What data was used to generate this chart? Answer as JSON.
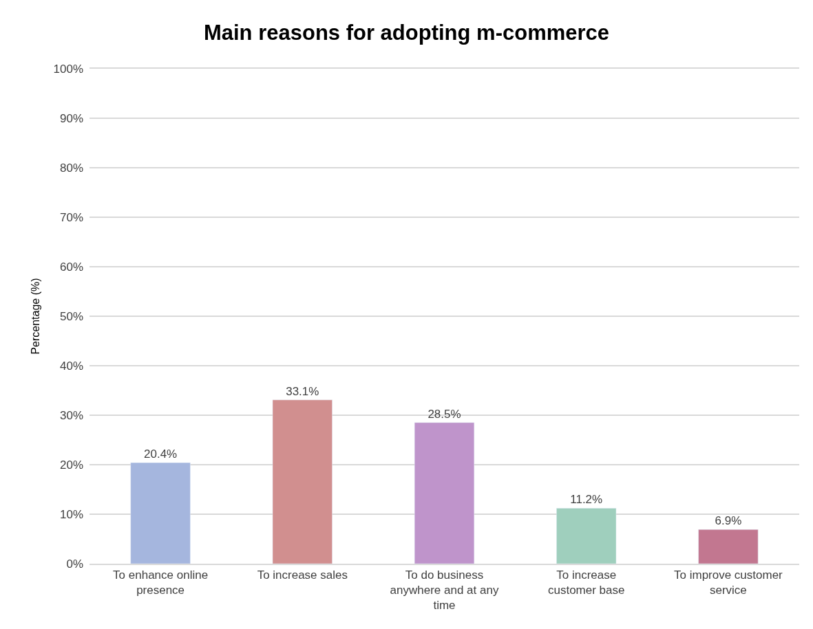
{
  "chart_data": {
    "type": "bar",
    "title": "Main reasons for adopting m-commerce",
    "ylabel": "Percentage (%)",
    "categories": [
      "To enhance online presence",
      "To increase sales",
      "To do business anywhere and at any time",
      "To increase customer base",
      "To improve customer service"
    ],
    "values": [
      20.4,
      33.1,
      28.5,
      11.2,
      6.9
    ],
    "colors": [
      "#a5b6de",
      "#d18f8f",
      "#bf94cb",
      "#9fcfbd",
      "#c27790"
    ],
    "value_labels": [
      "20.4%",
      "33.1%",
      "28.5%",
      "11.2%",
      "6.9%"
    ],
    "ylim": [
      0,
      100
    ],
    "yticks": [
      {
        "value": 0,
        "label": "0%"
      },
      {
        "value": 10,
        "label": "10%"
      },
      {
        "value": 20,
        "label": "20%"
      },
      {
        "value": 30,
        "label": "30%"
      },
      {
        "value": 40,
        "label": "40%"
      },
      {
        "value": 50,
        "label": "50%"
      },
      {
        "value": 60,
        "label": "60%"
      },
      {
        "value": 70,
        "label": "70%"
      },
      {
        "value": 80,
        "label": "80%"
      },
      {
        "value": 90,
        "label": "90%"
      },
      {
        "value": 100,
        "label": "100%"
      }
    ],
    "grid": "y"
  }
}
